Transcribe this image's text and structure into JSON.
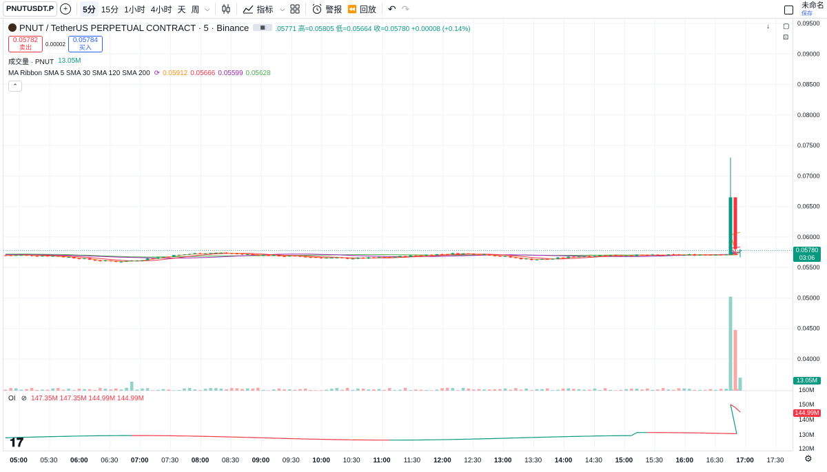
{
  "toolbar": {
    "symbol": "PNUTUSDT.P",
    "intervals": [
      "5分",
      "15分",
      "1小时",
      "4小时",
      "天",
      "周"
    ],
    "active_interval": "5分",
    "indicators_label": "指标",
    "alert_label": "警报",
    "replay_label": "回放",
    "layout_name": "未命名",
    "save_label": "保存"
  },
  "legend": {
    "title": "PNUT / TetherUS PERPETUAL CONTRACT · 5 · Binance",
    "ohlc": ".05771  高=0.05805  低=0.05664  收=0.05780  +0.00008 (+0.14%)",
    "bid_price": "0.05782",
    "bid_label": "卖出",
    "spread": "0.00002",
    "ask_price": "0.05784",
    "ask_label": "买入",
    "volume_label": "成交量 · PNUT",
    "volume_value": "13.05M",
    "ma_label": "MA Ribbon SMA 5 SMA 30 SMA 120 SMA 200",
    "ma_values": [
      "0.05912",
      "0.05666",
      "0.05599",
      "0.05628"
    ],
    "oi_label": "OI",
    "oi_values": "147.35M  147.35M  144.99M  144.99M"
  },
  "price_axis": {
    "labels": [
      "0.09500",
      "0.09000",
      "0.08500",
      "0.08000",
      "0.07500",
      "0.07000",
      "0.06500",
      "0.06000",
      "0.05500",
      "0.05000",
      "0.04500",
      "0.04000"
    ],
    "current_price": "0.05780",
    "countdown": "03:06",
    "volume_badge": "13.05M",
    "oi_labels": [
      "150M",
      "140M",
      "130M",
      "120M",
      "160M"
    ],
    "oi_badge": "144.99M"
  },
  "time_axis": {
    "labels": [
      "05:00",
      "05:30",
      "06:00",
      "06:30",
      "07:00",
      "07:30",
      "08:00",
      "08:30",
      "09:00",
      "09:30",
      "10:00",
      "10:30",
      "11:00",
      "11:30",
      "12:00",
      "12:30",
      "13:00",
      "13:30",
      "14:00",
      "14:30",
      "15:00",
      "15:30",
      "16:00",
      "16:30",
      "17:00",
      "17:30"
    ]
  },
  "colors": {
    "up": "#089981",
    "down": "#f23645",
    "vol_up": "#92d2c7",
    "vol_down": "#f7a9a9",
    "sma5": "#f7931a",
    "sma30": "#f23645",
    "sma120": "#9c27b0",
    "sma200": "#4caf50"
  },
  "chart_data": {
    "type": "candlestick",
    "title": "PNUT / TetherUS PERPETUAL CONTRACT · 5 · Binance",
    "x_range": [
      "05:00",
      "17:30"
    ],
    "ylim": [
      0.0395,
      0.0955
    ],
    "last_close": 0.0578,
    "notable_candles": [
      {
        "time": "16:45",
        "open": 0.0571,
        "high": 0.073,
        "low": 0.057,
        "close": 0.0665
      },
      {
        "time": "16:50",
        "open": 0.0665,
        "high": 0.0665,
        "low": 0.0575,
        "close": 0.058
      },
      {
        "time": "16:55",
        "open": 0.05771,
        "high": 0.05805,
        "low": 0.05664,
        "close": 0.0578
      }
    ],
    "baseline_range": [
      0.0547,
      0.0575
    ],
    "volume_last": "13.05M",
    "oi_last": "144.99M"
  }
}
